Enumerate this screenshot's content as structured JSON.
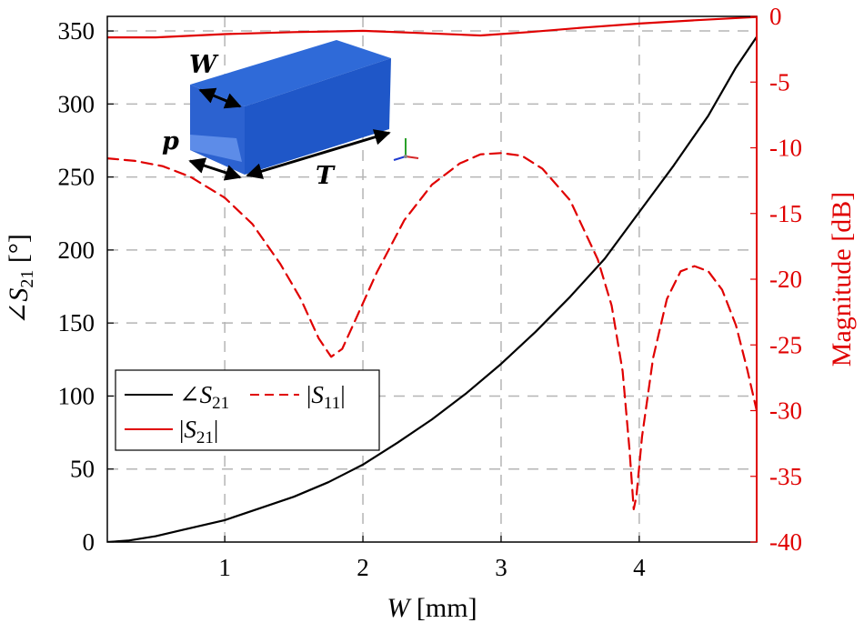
{
  "chart_data": {
    "type": "line",
    "xlabel": "W [mm]",
    "xlim": [
      0.15,
      4.85
    ],
    "xticks": [
      1,
      2,
      3,
      4
    ],
    "y_left": {
      "label": "∠S21 [°]",
      "lim": [
        0,
        360
      ],
      "ticks": [
        0,
        50,
        100,
        150,
        200,
        250,
        300,
        350
      ],
      "color": "#000000"
    },
    "y_right": {
      "label": "Magnitude [dB]",
      "lim": [
        -40,
        0
      ],
      "ticks": [
        0,
        -5,
        -10,
        -15,
        -20,
        -25,
        -30,
        -35,
        -40
      ],
      "color": "#e00000"
    },
    "grid": true,
    "series": [
      {
        "name": "∠S21",
        "axis": "left",
        "color": "#000000",
        "style": "solid",
        "points": [
          [
            0.15,
            0
          ],
          [
            0.3,
            1
          ],
          [
            0.5,
            4
          ],
          [
            0.7,
            8.5
          ],
          [
            1.0,
            15
          ],
          [
            1.25,
            23
          ],
          [
            1.5,
            31
          ],
          [
            1.75,
            41
          ],
          [
            2.0,
            53
          ],
          [
            2.25,
            68
          ],
          [
            2.5,
            84
          ],
          [
            2.75,
            102
          ],
          [
            3.0,
            122
          ],
          [
            3.25,
            144
          ],
          [
            3.5,
            168
          ],
          [
            3.75,
            194
          ],
          [
            4.0,
            226
          ],
          [
            4.25,
            258
          ],
          [
            4.5,
            292
          ],
          [
            4.7,
            325
          ],
          [
            4.85,
            346
          ]
        ]
      },
      {
        "name": "|S11|",
        "axis": "right",
        "color": "#e00000",
        "style": "dashed",
        "points": [
          [
            0.15,
            -10.8
          ],
          [
            0.35,
            -11.0
          ],
          [
            0.55,
            -11.4
          ],
          [
            0.75,
            -12.2
          ],
          [
            1.0,
            -13.8
          ],
          [
            1.2,
            -15.8
          ],
          [
            1.4,
            -18.8
          ],
          [
            1.55,
            -21.5
          ],
          [
            1.68,
            -24.5
          ],
          [
            1.77,
            -25.9
          ],
          [
            1.85,
            -25.3
          ],
          [
            1.95,
            -23.0
          ],
          [
            2.1,
            -19.5
          ],
          [
            2.3,
            -15.5
          ],
          [
            2.5,
            -12.8
          ],
          [
            2.7,
            -11.2
          ],
          [
            2.85,
            -10.5
          ],
          [
            3.0,
            -10.4
          ],
          [
            3.15,
            -10.6
          ],
          [
            3.3,
            -11.6
          ],
          [
            3.5,
            -14.0
          ],
          [
            3.7,
            -18.5
          ],
          [
            3.8,
            -22.0
          ],
          [
            3.88,
            -27.0
          ],
          [
            3.93,
            -33.0
          ],
          [
            3.96,
            -37.5
          ],
          [
            3.98,
            -36.5
          ],
          [
            4.02,
            -32.0
          ],
          [
            4.1,
            -26.0
          ],
          [
            4.2,
            -21.5
          ],
          [
            4.3,
            -19.4
          ],
          [
            4.4,
            -19.0
          ],
          [
            4.5,
            -19.4
          ],
          [
            4.6,
            -20.8
          ],
          [
            4.7,
            -23.5
          ],
          [
            4.78,
            -26.8
          ],
          [
            4.85,
            -30.0
          ]
        ]
      },
      {
        "name": "|S21|",
        "axis": "right",
        "color": "#e00000",
        "style": "solid",
        "points": [
          [
            0.15,
            -1.6
          ],
          [
            0.5,
            -1.6
          ],
          [
            1.0,
            -1.35
          ],
          [
            1.5,
            -1.2
          ],
          [
            2.0,
            -1.1
          ],
          [
            2.5,
            -1.3
          ],
          [
            2.85,
            -1.45
          ],
          [
            3.2,
            -1.2
          ],
          [
            3.6,
            -0.85
          ],
          [
            4.0,
            -0.55
          ],
          [
            4.4,
            -0.3
          ],
          [
            4.85,
            -0.05
          ]
        ]
      }
    ],
    "legend": {
      "position": "lower-left",
      "entries": [
        {
          "label": "∠S21",
          "series": 0
        },
        {
          "label": "|S11|",
          "series": 1
        },
        {
          "label": "|S21|",
          "series": 2
        }
      ]
    },
    "inset": {
      "description_labels": [
        "W",
        "p",
        "T"
      ],
      "box_color": "#1f5bd0"
    }
  }
}
